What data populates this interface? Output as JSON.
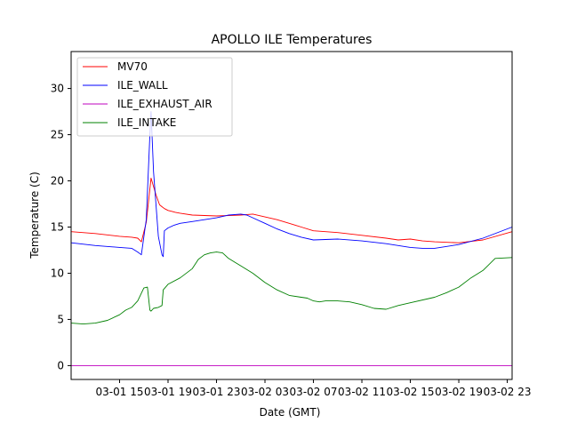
{
  "chart_data": {
    "type": "line",
    "title": "APOLLO ILE Temperatures",
    "xlabel": "Date (GMT)",
    "ylabel": "Temperature (C)",
    "x_unit": "hours since 03-01 11:00 GMT",
    "xlim": [
      0,
      36.4
    ],
    "ylim": [
      -1.5,
      34
    ],
    "yticks": [
      0,
      5,
      10,
      15,
      20,
      25,
      30
    ],
    "ytick_labels": [
      "0",
      "5",
      "10",
      "15",
      "20",
      "25",
      "30"
    ],
    "xticks": [
      4,
      8,
      12,
      16,
      20,
      24,
      28,
      32,
      36
    ],
    "xtick_labels": [
      "03-01 15",
      "03-01 19",
      "03-01 23",
      "03-02 03",
      "03-02 07",
      "03-02 11",
      "03-02 15",
      "03-02 19",
      "03-02 23"
    ],
    "legend_position": "top-left",
    "series": [
      {
        "name": "MV70",
        "color": "#ff0000",
        "x": [
          0,
          2,
          4,
          5,
          5.5,
          5.8,
          6.2,
          6.6,
          7.0,
          7.3,
          7.5,
          7.7,
          8.0,
          8.3,
          8.6,
          9,
          10,
          12,
          14,
          15,
          16,
          17,
          18,
          19,
          20,
          21,
          22,
          24,
          26,
          27,
          28,
          29,
          30,
          32,
          34,
          36.4
        ],
        "y": [
          14.5,
          14.3,
          14.0,
          13.9,
          13.8,
          13.4,
          15.5,
          20.3,
          18.5,
          17.4,
          17.2,
          17.0,
          16.8,
          16.7,
          16.6,
          16.5,
          16.3,
          16.2,
          16.3,
          16.4,
          16.1,
          15.8,
          15.4,
          15.0,
          14.6,
          14.5,
          14.4,
          14.1,
          13.8,
          13.6,
          13.7,
          13.5,
          13.4,
          13.3,
          13.6,
          14.5
        ]
      },
      {
        "name": "ILE_WALL",
        "color": "#0000ff",
        "x": [
          0,
          2,
          4,
          5,
          5.5,
          5.8,
          6.2,
          6.5,
          6.6,
          6.8,
          7.2,
          7.5,
          7.6,
          7.7,
          8.0,
          8.5,
          9,
          10,
          12,
          13,
          14,
          14.5,
          15,
          16,
          17,
          18,
          19,
          20,
          22,
          24,
          26,
          27,
          28,
          29,
          30,
          32,
          34,
          36.4
        ],
        "y": [
          13.3,
          13.0,
          12.8,
          12.7,
          12.3,
          12.0,
          15.8,
          25.0,
          27.5,
          21.0,
          14.0,
          12.0,
          11.8,
          14.6,
          14.9,
          15.2,
          15.4,
          15.6,
          16.0,
          16.3,
          16.4,
          16.3,
          16.0,
          15.4,
          14.8,
          14.3,
          13.9,
          13.6,
          13.7,
          13.5,
          13.2,
          13.0,
          12.8,
          12.7,
          12.7,
          13.1,
          13.8,
          15.0
        ]
      },
      {
        "name": "ILE_EXHAUST_AIR",
        "color": "#bf00bf",
        "x": [
          0,
          36.4
        ],
        "y": [
          0,
          0
        ]
      },
      {
        "name": "ILE_INTAKE",
        "color": "#008000",
        "x": [
          0,
          1,
          2,
          3,
          4,
          4.5,
          5,
          5.5,
          6,
          6.3,
          6.5,
          6.6,
          6.8,
          7.2,
          7.5,
          7.6,
          8,
          9,
          10,
          10.5,
          11,
          11.5,
          12,
          12.5,
          13,
          13.5,
          14,
          15,
          16,
          17,
          18,
          19,
          19.5,
          20,
          20.5,
          21,
          22,
          23,
          24,
          25,
          26,
          27,
          28,
          30,
          31,
          32,
          33,
          34,
          35,
          36.4
        ],
        "y": [
          4.6,
          4.5,
          4.6,
          4.9,
          5.5,
          6.0,
          6.3,
          7.0,
          8.4,
          8.5,
          6.0,
          5.9,
          6.2,
          6.3,
          6.5,
          8.2,
          8.8,
          9.5,
          10.5,
          11.5,
          12.0,
          12.2,
          12.3,
          12.2,
          11.6,
          11.2,
          10.8,
          10.0,
          9.0,
          8.2,
          7.6,
          7.4,
          7.3,
          7.0,
          6.9,
          7.0,
          7.0,
          6.9,
          6.6,
          6.2,
          6.1,
          6.5,
          6.8,
          7.4,
          7.9,
          8.5,
          9.5,
          10.3,
          11.6,
          11.7
        ]
      }
    ]
  }
}
